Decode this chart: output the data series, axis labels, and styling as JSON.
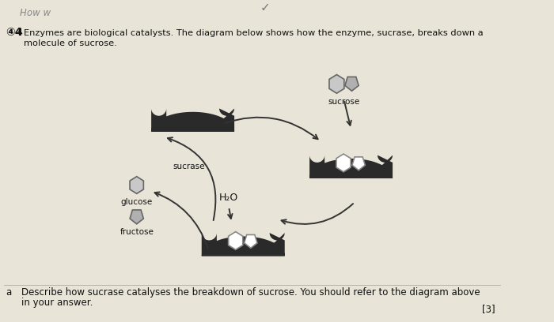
{
  "bg_color": "#e8e4d8",
  "title_line1": "Enzymes are biological catalysts. The diagram below shows how the enzyme, sucrase, breaks down a",
  "title_line2": "molecule of sucrose.",
  "question_marker": "④4",
  "question_num": "4",
  "handwriting_top": "How w",
  "checkmark_top": "✓",
  "label_sucrase": "sucrase",
  "label_sucrose": "sucrose",
  "label_h2o": "H₂O",
  "label_glucose": "glucose",
  "label_fructose": "fructose",
  "footer_a": "a",
  "footer_line1": "Describe how sucrase catalyses the breakdown of sucrose. You should refer to the diagram above",
  "footer_line2": "in your answer.",
  "score": "[3]",
  "enzyme_color": "#2a2a2a",
  "shape_hex_fill": "#c8c8c8",
  "shape_pent_fill": "#b0b0b0",
  "shape_outline": "#ffffff"
}
